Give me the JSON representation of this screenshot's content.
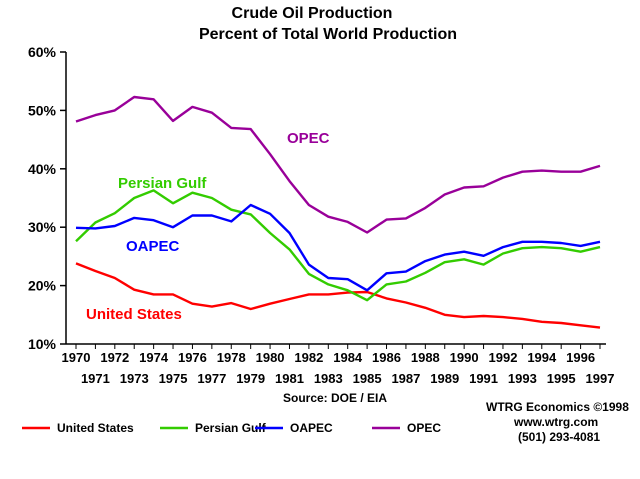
{
  "chart_data": {
    "type": "line",
    "title": "Crude Oil Production",
    "subtitle": "Percent of Total World Production",
    "x": [
      1970,
      1971,
      1972,
      1973,
      1974,
      1975,
      1976,
      1977,
      1978,
      1979,
      1980,
      1981,
      1982,
      1983,
      1984,
      1985,
      1986,
      1987,
      1988,
      1989,
      1990,
      1991,
      1992,
      1993,
      1994,
      1995,
      1996,
      1997
    ],
    "ylim": [
      10,
      60
    ],
    "yticks": [
      "10%",
      "20%",
      "30%",
      "40%",
      "50%",
      "60%"
    ],
    "xticks_top": [
      "1970",
      "1972",
      "1974",
      "1976",
      "1978",
      "1980",
      "1982",
      "1984",
      "1986",
      "1988",
      "1990",
      "1992",
      "1994",
      "1996"
    ],
    "xticks_bottom": [
      "1971",
      "1973",
      "1975",
      "1977",
      "1979",
      "1981",
      "1983",
      "1985",
      "1987",
      "1989",
      "1991",
      "1993",
      "1995",
      "1997"
    ],
    "grid": false,
    "legend": "bottom",
    "series": [
      {
        "name": "United States",
        "color": "#ff0000",
        "values": [
          23.8,
          22.5,
          21.3,
          19.3,
          18.5,
          18.5,
          16.9,
          16.4,
          17.0,
          16.0,
          16.9,
          17.7,
          18.5,
          18.5,
          18.8,
          18.9,
          17.8,
          17.1,
          16.2,
          15.0,
          14.6,
          14.8,
          14.6,
          14.3,
          13.8,
          13.6,
          13.2,
          12.8
        ]
      },
      {
        "name": "Persian Gulf",
        "color": "#33cc00",
        "values": [
          27.6,
          30.8,
          32.4,
          35.0,
          36.3,
          34.1,
          35.9,
          35.0,
          33.0,
          32.2,
          29.0,
          26.2,
          22.0,
          20.2,
          19.2,
          17.5,
          20.2,
          20.7,
          22.2,
          24.0,
          24.5,
          23.6,
          25.5,
          26.4,
          26.6,
          26.4,
          25.8,
          26.6
        ]
      },
      {
        "name": "OAPEC",
        "color": "#0000ff",
        "values": [
          29.9,
          29.8,
          30.2,
          31.6,
          31.2,
          30.0,
          32.0,
          32.0,
          31.0,
          33.8,
          32.3,
          29.0,
          23.6,
          21.3,
          21.1,
          19.2,
          22.1,
          22.4,
          24.2,
          25.3,
          25.8,
          25.1,
          26.6,
          27.5,
          27.5,
          27.3,
          26.8,
          27.5
        ]
      },
      {
        "name": "OPEC",
        "color": "#990099",
        "values": [
          48.1,
          49.2,
          50.0,
          52.3,
          51.9,
          48.2,
          50.6,
          49.6,
          47.0,
          46.8,
          42.5,
          37.9,
          33.8,
          31.8,
          30.9,
          29.1,
          31.3,
          31.5,
          33.3,
          35.6,
          36.8,
          37.0,
          38.5,
          39.5,
          39.7,
          39.5,
          39.5,
          40.5
        ]
      }
    ],
    "series_labels": [
      {
        "text": "OPEC",
        "series": "OPEC"
      },
      {
        "text": "Persian Gulf",
        "series": "Persian Gulf"
      },
      {
        "text": "OAPEC",
        "series": "OAPEC"
      },
      {
        "text": "United States",
        "series": "United States"
      }
    ],
    "source": "Source: DOE / EIA"
  },
  "credit": {
    "line1": "WTRG Economics  ©1998",
    "line2": "www.wtrg.com",
    "line3": "(501) 293-4081"
  }
}
